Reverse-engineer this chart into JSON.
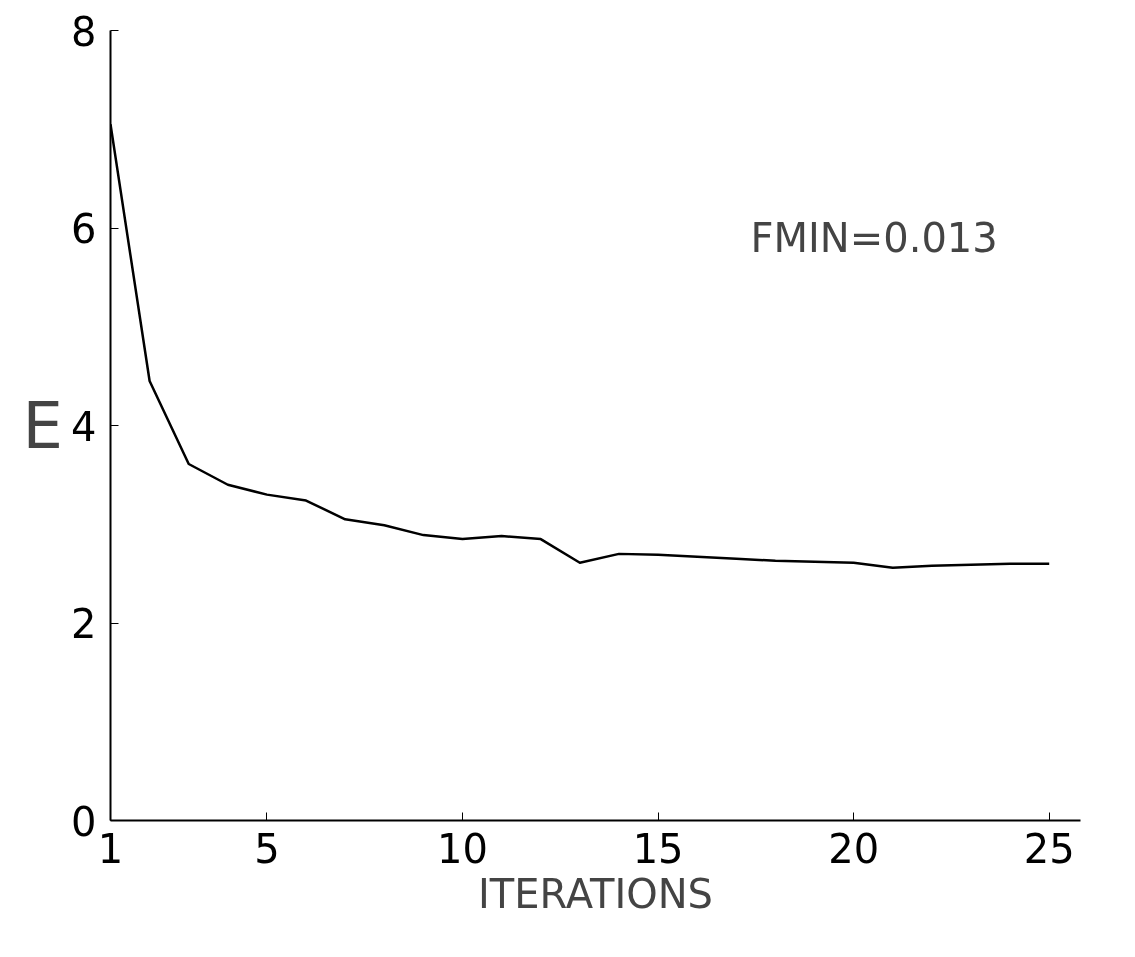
{
  "chart_data": {
    "type": "line",
    "xlabel": "ITERATIONS",
    "ylabel": "E",
    "x": [
      1,
      2,
      3,
      4,
      5,
      6,
      7,
      8,
      9,
      10,
      11,
      12,
      13,
      14,
      15,
      16,
      17,
      18,
      19,
      20,
      21,
      22,
      23,
      24,
      25
    ],
    "series": [
      {
        "color": "#000000",
        "values": [
          7.05,
          4.45,
          3.61,
          3.4,
          3.3,
          3.24,
          3.05,
          2.99,
          2.89,
          2.85,
          2.88,
          2.85,
          2.61,
          2.7,
          2.69,
          2.67,
          2.65,
          2.63,
          2.62,
          2.61,
          2.56,
          2.58,
          2.59,
          2.6,
          2.6
        ]
      }
    ],
    "xlim": [
      1,
      25.8
    ],
    "ylim": [
      0,
      8
    ],
    "xticks": [
      1,
      5,
      10,
      15,
      20,
      25
    ],
    "yticks": [
      0,
      2,
      4,
      6,
      8
    ],
    "annotations": [
      "FMIN=0.013"
    ],
    "grid": false,
    "marker": "none",
    "line_style": "solid"
  }
}
